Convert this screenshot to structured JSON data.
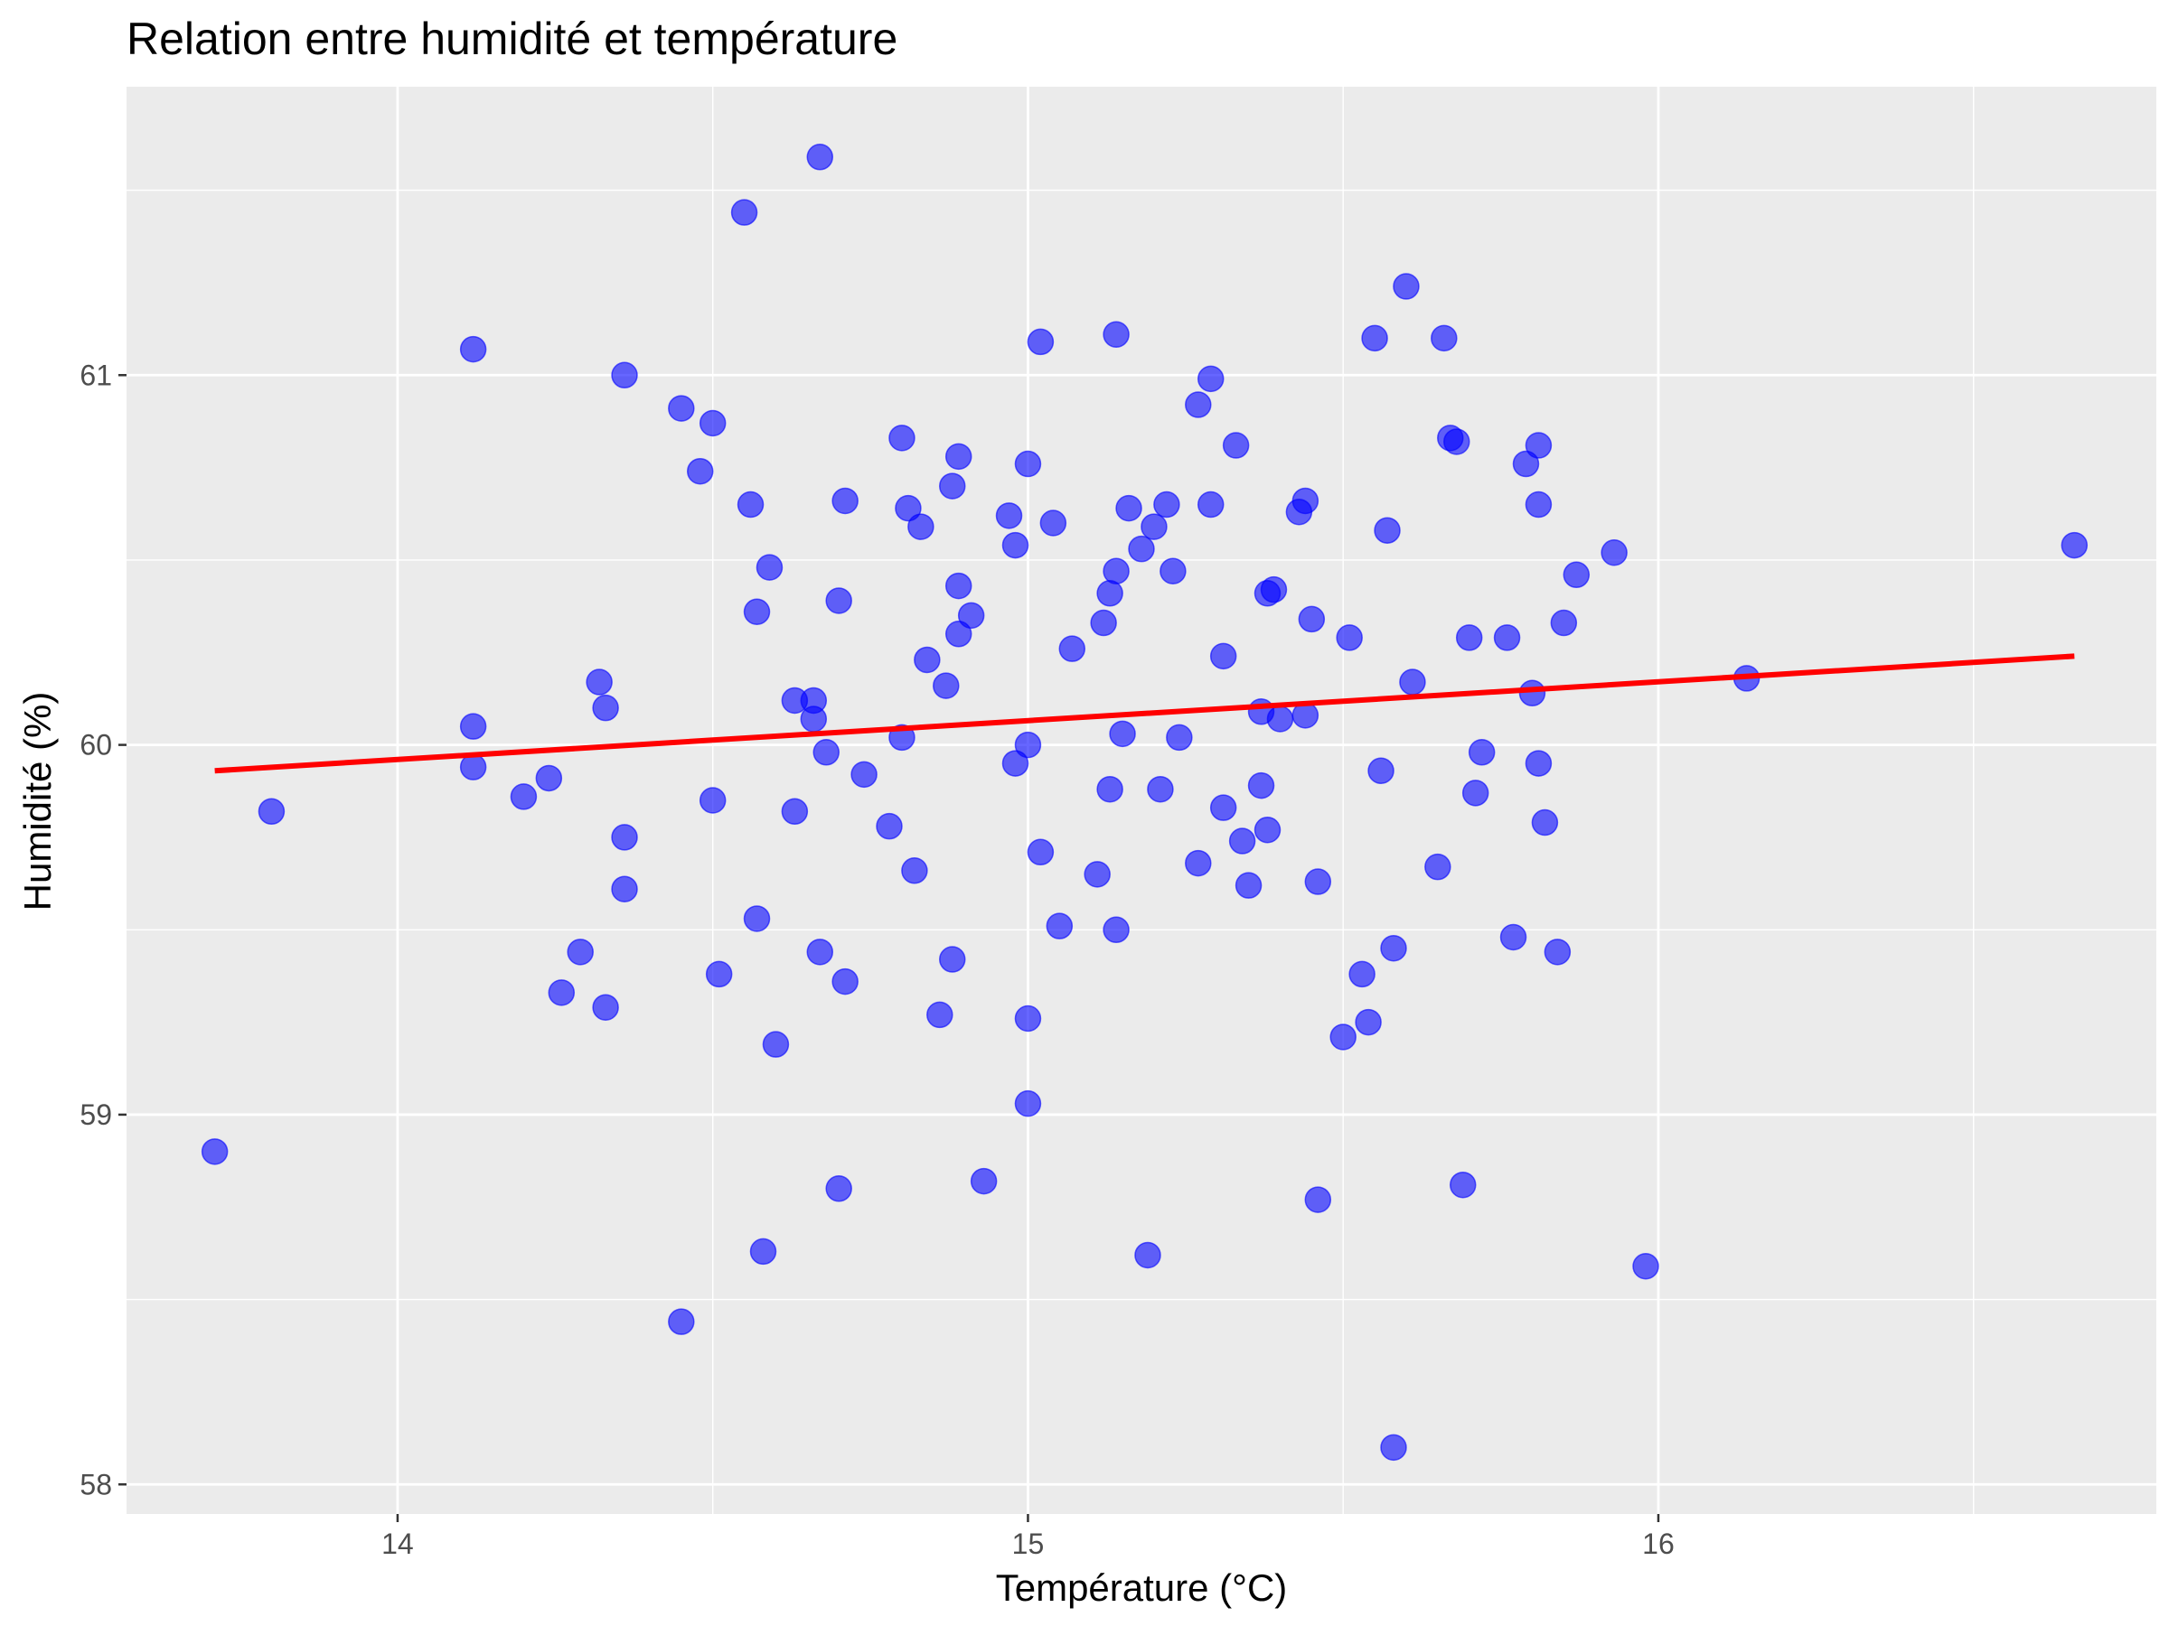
{
  "chart_data": {
    "type": "scatter",
    "title": "Relation entre humidité et température",
    "xlabel": "Température (°C)",
    "ylabel": "Humidité (%)",
    "xlim": [
      13.57,
      16.79
    ],
    "ylim": [
      57.92,
      61.78
    ],
    "x_ticks": [
      14,
      15,
      16
    ],
    "y_ticks": [
      58,
      59,
      60,
      61
    ],
    "x_tick_labels": [
      "14",
      "15",
      "16"
    ],
    "y_tick_labels": [
      "58",
      "59",
      "60",
      "61"
    ],
    "grid": true,
    "background": "#EBEBEB",
    "point_color": "#0000FF",
    "line_color": "#FF0000",
    "trend_line": {
      "x": [
        13.71,
        16.66
      ],
      "y": [
        59.93,
        60.24
      ]
    },
    "points": [
      [
        13.71,
        58.9
      ],
      [
        13.8,
        59.82
      ],
      [
        14.12,
        61.07
      ],
      [
        14.12,
        60.05
      ],
      [
        14.12,
        59.94
      ],
      [
        14.2,
        59.86
      ],
      [
        14.24,
        59.91
      ],
      [
        14.26,
        59.33
      ],
      [
        14.29,
        59.44
      ],
      [
        14.32,
        60.17
      ],
      [
        14.33,
        60.1
      ],
      [
        14.33,
        59.29
      ],
      [
        14.36,
        61.0
      ],
      [
        14.36,
        59.75
      ],
      [
        14.36,
        59.61
      ],
      [
        14.45,
        60.91
      ],
      [
        14.45,
        58.44
      ],
      [
        14.48,
        60.74
      ],
      [
        14.5,
        59.85
      ],
      [
        14.5,
        60.87
      ],
      [
        14.51,
        59.38
      ],
      [
        14.55,
        61.44
      ],
      [
        14.56,
        60.65
      ],
      [
        14.57,
        60.36
      ],
      [
        14.57,
        59.53
      ],
      [
        14.58,
        58.63
      ],
      [
        14.59,
        60.48
      ],
      [
        14.6,
        59.19
      ],
      [
        14.63,
        59.82
      ],
      [
        14.63,
        60.12
      ],
      [
        14.66,
        60.12
      ],
      [
        14.66,
        60.07
      ],
      [
        14.67,
        59.44
      ],
      [
        14.67,
        61.59
      ],
      [
        14.68,
        59.98
      ],
      [
        14.7,
        60.39
      ],
      [
        14.7,
        58.8
      ],
      [
        14.71,
        60.66
      ],
      [
        14.71,
        59.36
      ],
      [
        14.74,
        59.92
      ],
      [
        14.78,
        59.78
      ],
      [
        14.8,
        60.83
      ],
      [
        14.8,
        60.02
      ],
      [
        14.81,
        60.64
      ],
      [
        14.82,
        59.66
      ],
      [
        14.83,
        60.59
      ],
      [
        14.84,
        60.23
      ],
      [
        14.86,
        59.27
      ],
      [
        14.87,
        60.16
      ],
      [
        14.88,
        60.7
      ],
      [
        14.88,
        59.42
      ],
      [
        14.89,
        60.43
      ],
      [
        14.89,
        60.3
      ],
      [
        14.89,
        60.78
      ],
      [
        14.91,
        60.35
      ],
      [
        14.93,
        58.82
      ],
      [
        14.97,
        60.62
      ],
      [
        14.98,
        60.54
      ],
      [
        14.98,
        59.95
      ],
      [
        15.0,
        60.76
      ],
      [
        15.0,
        60.0
      ],
      [
        15.0,
        59.03
      ],
      [
        15.0,
        59.26
      ],
      [
        15.02,
        61.09
      ],
      [
        15.02,
        59.71
      ],
      [
        15.04,
        60.6
      ],
      [
        15.05,
        59.51
      ],
      [
        15.07,
        60.26
      ],
      [
        15.11,
        59.65
      ],
      [
        15.12,
        60.33
      ],
      [
        15.13,
        60.41
      ],
      [
        15.13,
        59.88
      ],
      [
        15.14,
        61.11
      ],
      [
        15.14,
        59.5
      ],
      [
        15.14,
        60.47
      ],
      [
        15.15,
        60.03
      ],
      [
        15.16,
        60.64
      ],
      [
        15.18,
        60.53
      ],
      [
        15.19,
        58.62
      ],
      [
        15.2,
        60.59
      ],
      [
        15.21,
        59.88
      ],
      [
        15.22,
        60.65
      ],
      [
        15.23,
        60.47
      ],
      [
        15.24,
        60.02
      ],
      [
        15.27,
        59.68
      ],
      [
        15.27,
        60.92
      ],
      [
        15.29,
        60.99
      ],
      [
        15.29,
        60.65
      ],
      [
        15.31,
        60.24
      ],
      [
        15.31,
        59.83
      ],
      [
        15.33,
        60.81
      ],
      [
        15.34,
        59.74
      ],
      [
        15.35,
        59.62
      ],
      [
        15.37,
        59.89
      ],
      [
        15.37,
        60.09
      ],
      [
        15.38,
        59.77
      ],
      [
        15.38,
        60.41
      ],
      [
        15.39,
        60.42
      ],
      [
        15.4,
        60.07
      ],
      [
        15.43,
        60.63
      ],
      [
        15.44,
        60.08
      ],
      [
        15.44,
        60.66
      ],
      [
        15.45,
        60.34
      ],
      [
        15.46,
        59.63
      ],
      [
        15.46,
        58.77
      ],
      [
        15.5,
        59.21
      ],
      [
        15.51,
        60.29
      ],
      [
        15.53,
        59.38
      ],
      [
        15.54,
        59.25
      ],
      [
        15.55,
        61.1
      ],
      [
        15.56,
        59.93
      ],
      [
        15.57,
        60.58
      ],
      [
        15.58,
        58.1
      ],
      [
        15.58,
        59.45
      ],
      [
        15.6,
        61.24
      ],
      [
        15.61,
        60.17
      ],
      [
        15.65,
        59.67
      ],
      [
        15.66,
        61.1
      ],
      [
        15.67,
        60.83
      ],
      [
        15.68,
        60.82
      ],
      [
        15.69,
        58.81
      ],
      [
        15.7,
        60.29
      ],
      [
        15.71,
        59.87
      ],
      [
        15.72,
        59.98
      ],
      [
        15.76,
        60.29
      ],
      [
        15.77,
        59.48
      ],
      [
        15.79,
        60.76
      ],
      [
        15.8,
        60.14
      ],
      [
        15.81,
        60.65
      ],
      [
        15.81,
        60.81
      ],
      [
        15.81,
        59.95
      ],
      [
        15.82,
        59.79
      ],
      [
        15.84,
        59.44
      ],
      [
        15.85,
        60.33
      ],
      [
        15.87,
        60.46
      ],
      [
        15.93,
        60.52
      ],
      [
        15.98,
        58.59
      ],
      [
        16.14,
        60.18
      ],
      [
        16.66,
        60.54
      ]
    ]
  }
}
